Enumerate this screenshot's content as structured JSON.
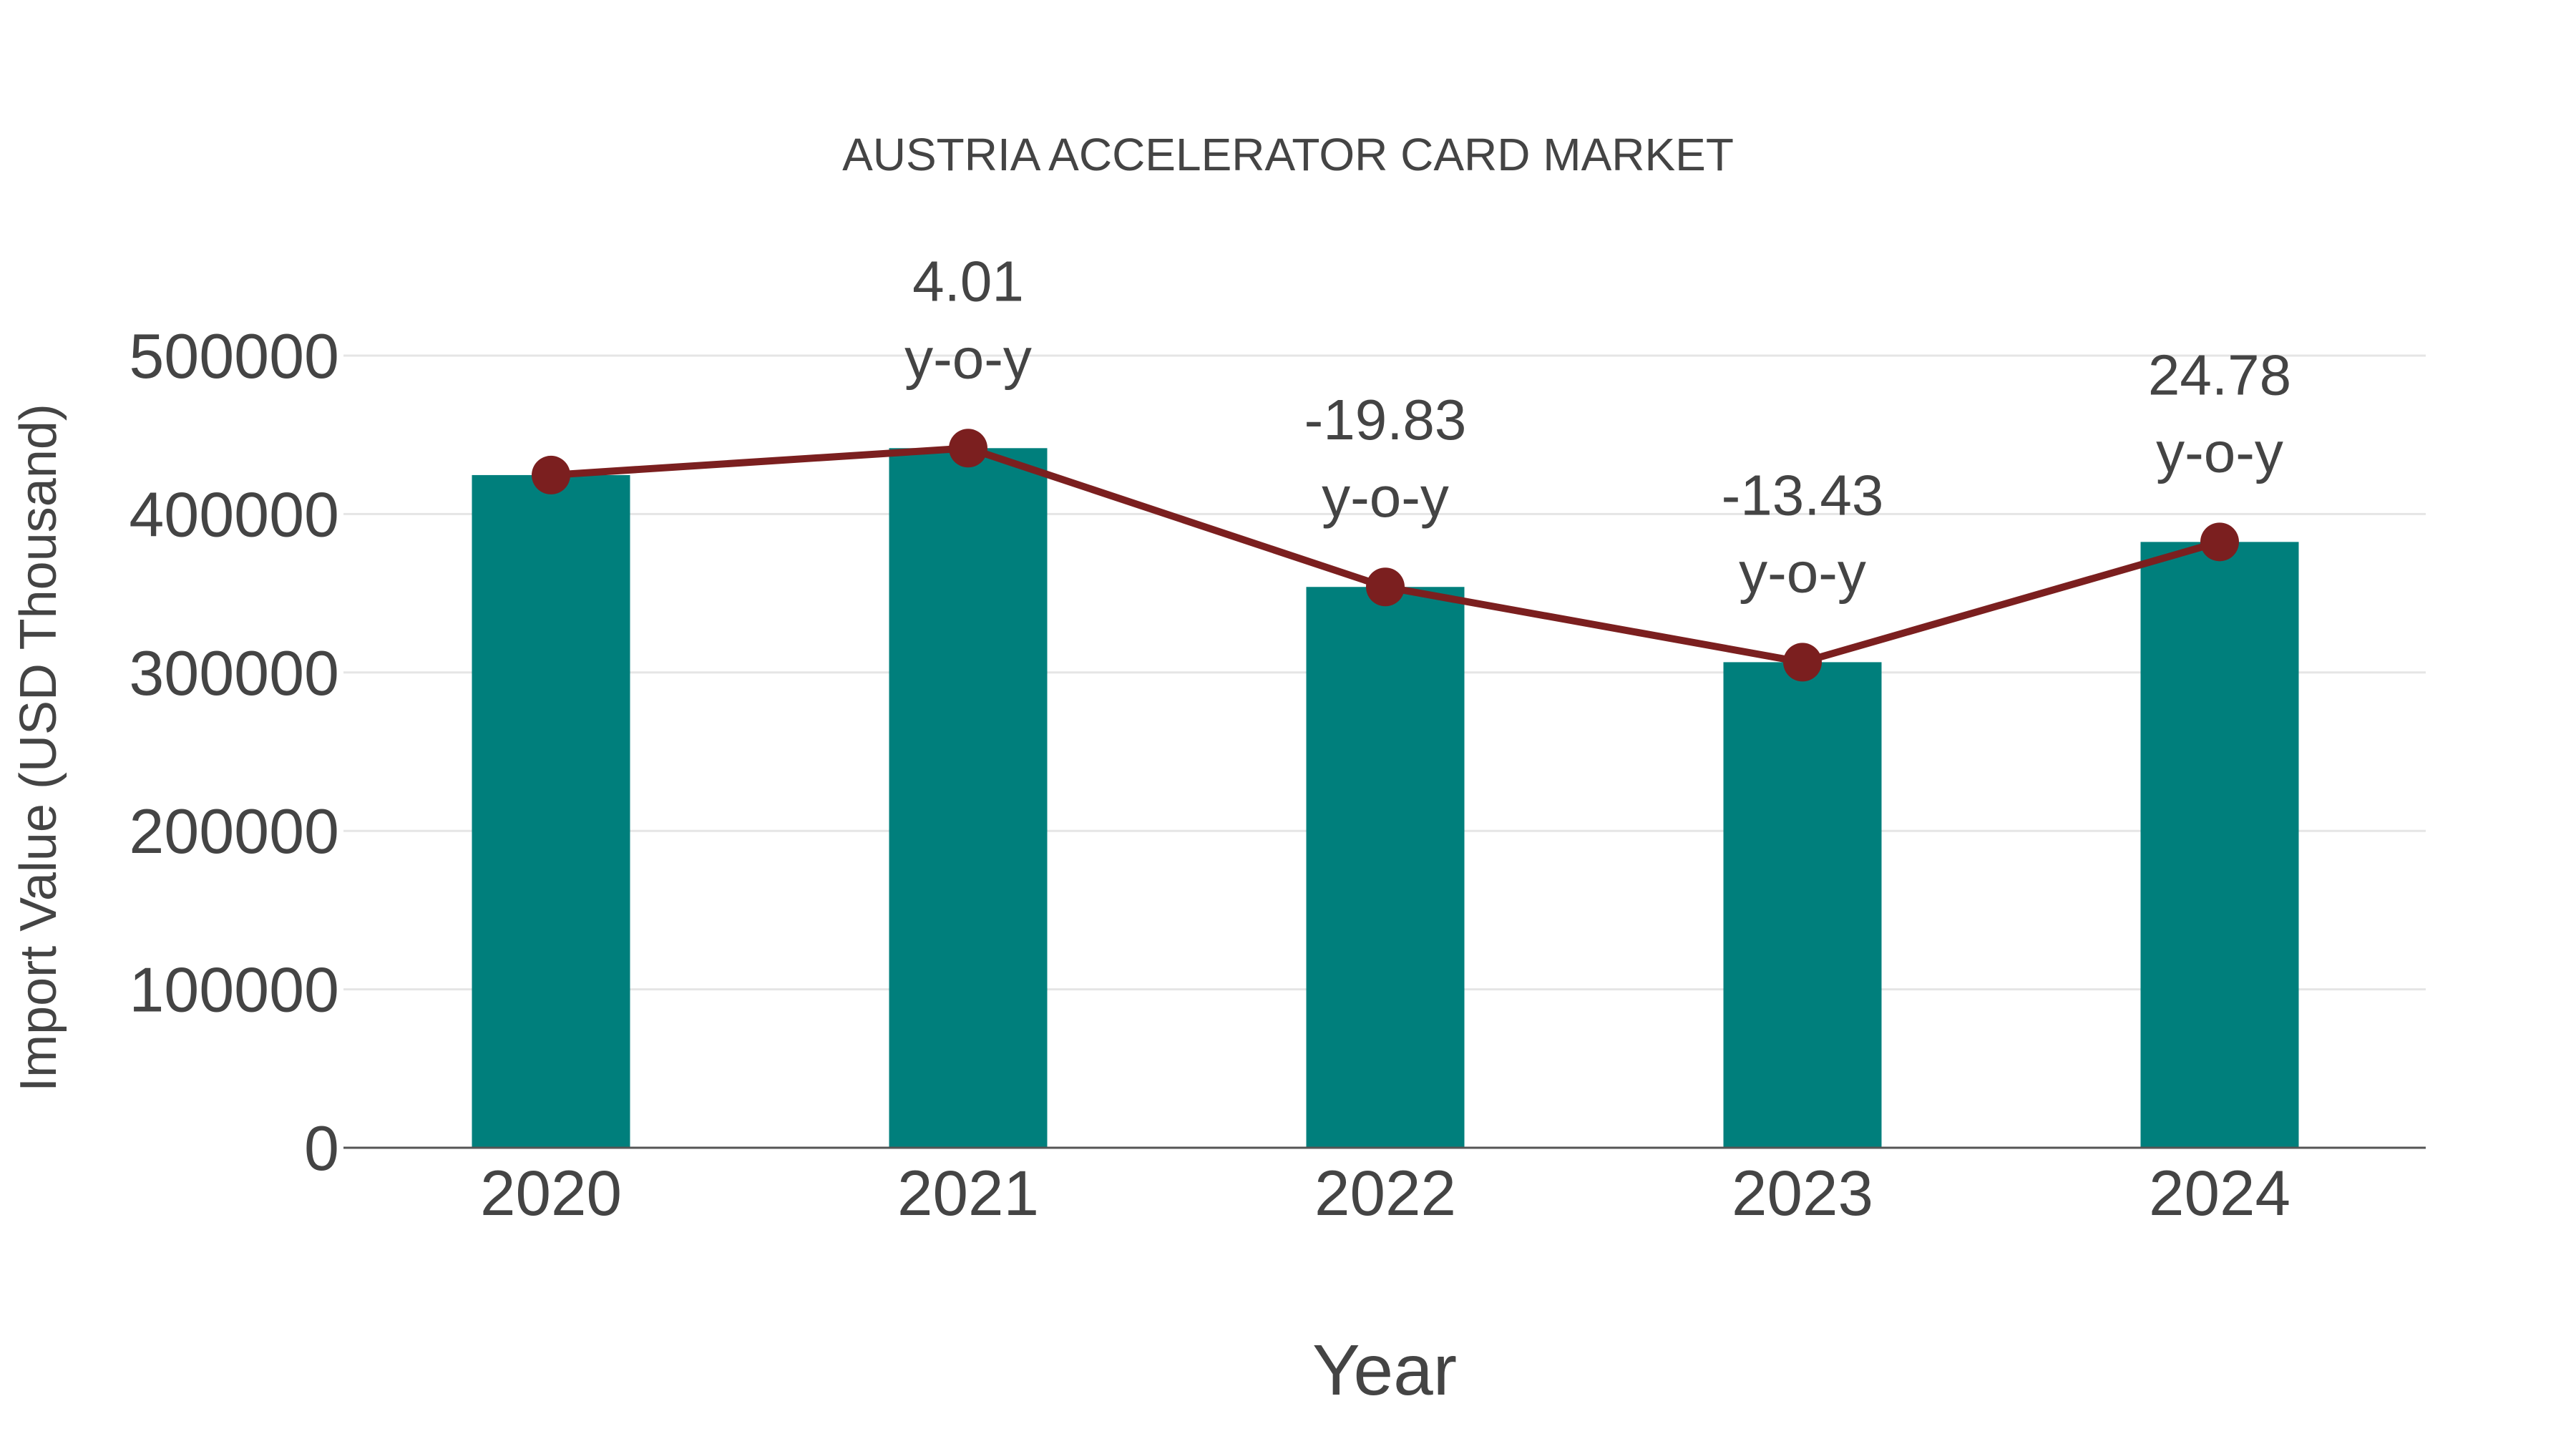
{
  "chart_data": {
    "type": "bar",
    "title": "AUSTRIA ACCELERATOR CARD MARKET",
    "xlabel": "Year",
    "ylabel": "Import Value (USD Thousand)",
    "categories": [
      "2020",
      "2021",
      "2022",
      "2023",
      "2024"
    ],
    "series": [
      {
        "name": "Import Value",
        "type": "bar",
        "color": "#007F7C",
        "values": [
          424600,
          441600,
          354000,
          306500,
          382400
        ]
      },
      {
        "name": "Import Value trend",
        "type": "line",
        "color": "#7B1F1F",
        "values": [
          424600,
          441600,
          354000,
          306500,
          382400
        ]
      }
    ],
    "annotations": [
      {
        "category": "2021",
        "value": "4.01",
        "suffix": "y-o-y"
      },
      {
        "category": "2022",
        "value": "-19.83",
        "suffix": "y-o-y"
      },
      {
        "category": "2023",
        "value": "-13.43",
        "suffix": "y-o-y"
      },
      {
        "category": "2024",
        "value": "24.78",
        "suffix": "y-o-y"
      }
    ],
    "yticks": [
      0,
      100000,
      200000,
      300000,
      400000,
      500000
    ],
    "ylim": [
      0,
      500000
    ],
    "grid": true,
    "legend": "none"
  },
  "colors": {
    "bar": "#007F7C",
    "line": "#7B1F1F",
    "grid": "#E5E5E5",
    "axis": "#555555",
    "text": "#444444"
  }
}
